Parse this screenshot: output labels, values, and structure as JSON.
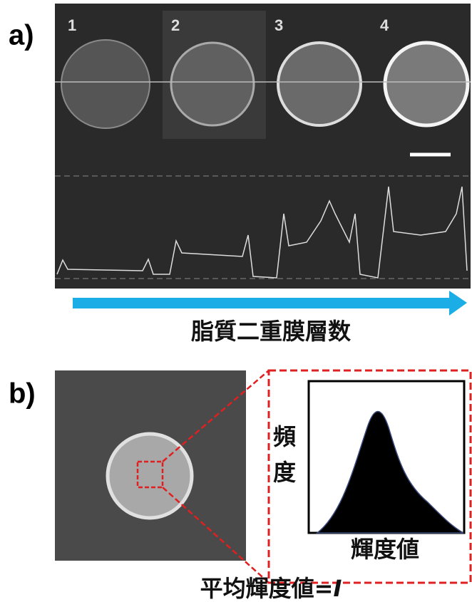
{
  "panel_a": {
    "label": "a)",
    "vesicles": [
      "1",
      "2",
      "3",
      "4"
    ],
    "arrow_caption": "脂質二重膜層数"
  },
  "panel_b": {
    "label": "b)",
    "y_axis_chars": [
      "頻",
      "度"
    ],
    "x_axis_label": "輝度値",
    "caption": "平均輝度値=",
    "caption_symbol": "I"
  }
}
